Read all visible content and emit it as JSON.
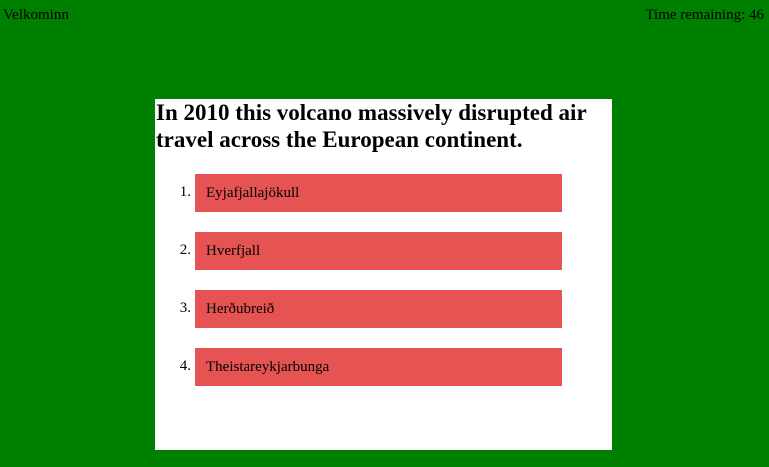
{
  "header": {
    "greeting": "Velkominn",
    "timer_label": "Time remaining: 46"
  },
  "quiz": {
    "question": "In 2010 this volcano massively disrupted air travel across the European continent.",
    "answers": [
      {
        "number": "1.",
        "label": "Eyjafjallajökull"
      },
      {
        "number": "2.",
        "label": "Hverfjall"
      },
      {
        "number": "3.",
        "label": "Herðubreið"
      },
      {
        "number": "4.",
        "label": "Theistareykjarbunga"
      }
    ]
  },
  "colors": {
    "background": "#008000",
    "card": "#ffffff",
    "answer_button": "#e55353"
  }
}
